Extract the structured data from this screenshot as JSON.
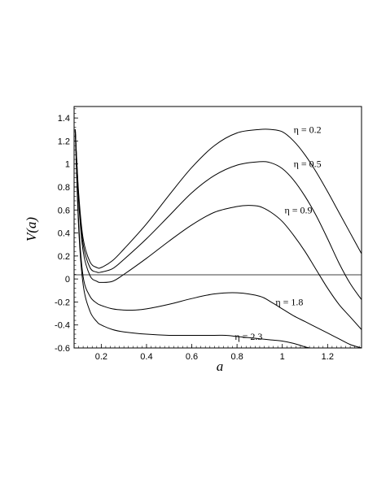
{
  "chart_data": {
    "type": "line",
    "xlabel": "a",
    "ylabel": "V(a)",
    "xlim": [
      0.08,
      1.35
    ],
    "ylim": [
      -0.6,
      1.5
    ],
    "xticks": [
      0.2,
      0.4,
      0.6,
      0.8,
      1,
      1.2
    ],
    "yticks": [
      -0.6,
      -0.4,
      -0.2,
      0,
      0.2,
      0.4,
      0.6,
      0.8,
      1,
      1.2,
      1.4
    ],
    "grid": false,
    "reference_lines": [
      {
        "axis": "y",
        "value": 0
      }
    ],
    "series": [
      {
        "name": "η = 0.2",
        "label_at": [
          1.05,
          1.3
        ],
        "x": [
          0.085,
          0.1,
          0.12,
          0.15,
          0.18,
          0.2,
          0.25,
          0.3,
          0.4,
          0.5,
          0.6,
          0.7,
          0.8,
          0.9,
          0.95,
          1.0,
          1.05,
          1.1,
          1.15,
          1.2,
          1.25,
          1.3,
          1.35
        ],
        "y": [
          1.3,
          0.75,
          0.35,
          0.15,
          0.1,
          0.1,
          0.16,
          0.26,
          0.48,
          0.73,
          0.97,
          1.16,
          1.27,
          1.3,
          1.3,
          1.28,
          1.2,
          1.08,
          0.93,
          0.76,
          0.58,
          0.4,
          0.22
        ]
      },
      {
        "name": "η = 0.5",
        "label_at": [
          1.05,
          1.0
        ],
        "x": [
          0.085,
          0.1,
          0.12,
          0.15,
          0.18,
          0.2,
          0.25,
          0.3,
          0.4,
          0.5,
          0.6,
          0.7,
          0.8,
          0.9,
          0.95,
          1.0,
          1.05,
          1.1,
          1.15,
          1.2,
          1.25,
          1.3,
          1.35
        ],
        "y": [
          1.3,
          0.72,
          0.3,
          0.1,
          0.06,
          0.06,
          0.09,
          0.17,
          0.35,
          0.55,
          0.75,
          0.9,
          0.99,
          1.02,
          1.01,
          0.96,
          0.86,
          0.72,
          0.55,
          0.35,
          0.14,
          -0.04,
          -0.18
        ]
      },
      {
        "name": "η = 0.9",
        "label_at": [
          1.01,
          0.6
        ],
        "x": [
          0.085,
          0.1,
          0.12,
          0.15,
          0.18,
          0.2,
          0.25,
          0.3,
          0.4,
          0.5,
          0.6,
          0.7,
          0.8,
          0.85,
          0.9,
          0.95,
          1.0,
          1.05,
          1.1,
          1.15,
          1.2,
          1.25,
          1.3,
          1.35
        ],
        "y": [
          1.3,
          0.68,
          0.24,
          0.03,
          -0.02,
          -0.03,
          -0.02,
          0.04,
          0.18,
          0.33,
          0.47,
          0.58,
          0.63,
          0.64,
          0.63,
          0.58,
          0.5,
          0.38,
          0.24,
          0.08,
          -0.08,
          -0.22,
          -0.33,
          -0.44
        ]
      },
      {
        "name": "η = 1.8",
        "label_at": [
          0.97,
          -0.2
        ],
        "x": [
          0.085,
          0.1,
          0.12,
          0.15,
          0.18,
          0.2,
          0.25,
          0.3,
          0.35,
          0.4,
          0.5,
          0.6,
          0.7,
          0.8,
          0.9,
          0.95,
          1.0,
          1.05,
          1.1,
          1.15,
          1.2,
          1.25,
          1.3,
          1.35
        ],
        "y": [
          1.3,
          0.5,
          0.02,
          -0.15,
          -0.21,
          -0.23,
          -0.26,
          -0.27,
          -0.27,
          -0.26,
          -0.22,
          -0.17,
          -0.13,
          -0.12,
          -0.15,
          -0.2,
          -0.26,
          -0.32,
          -0.37,
          -0.42,
          -0.47,
          -0.52,
          -0.57,
          -0.6
        ]
      },
      {
        "name": "η = 2.3",
        "label_at": [
          0.79,
          -0.5
        ],
        "x": [
          0.085,
          0.1,
          0.12,
          0.15,
          0.18,
          0.2,
          0.25,
          0.3,
          0.4,
          0.5,
          0.6,
          0.7,
          0.75,
          0.8,
          0.85,
          0.9,
          0.95,
          1.0,
          1.05,
          1.1,
          1.12
        ],
        "y": [
          1.3,
          0.45,
          -0.05,
          -0.28,
          -0.37,
          -0.4,
          -0.44,
          -0.46,
          -0.48,
          -0.49,
          -0.49,
          -0.49,
          -0.49,
          -0.5,
          -0.51,
          -0.52,
          -0.53,
          -0.54,
          -0.56,
          -0.59,
          -0.6
        ]
      }
    ]
  }
}
